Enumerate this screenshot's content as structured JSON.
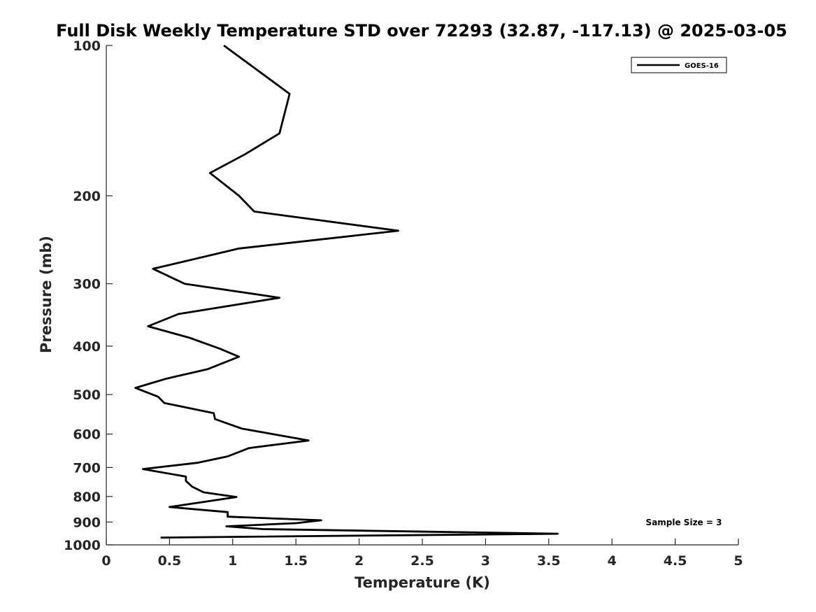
{
  "chart_data": {
    "type": "line",
    "title": "Full Disk Weekly Temperature STD over 72293 (32.87, -117.13) @ 2025-03-05",
    "xlabel": "Temperature (K)",
    "ylabel": "Pressure (mb)",
    "xlim": [
      0,
      5
    ],
    "ylim": [
      100,
      1000
    ],
    "y_scale": "log",
    "y_reversed": true,
    "x_ticks": [
      "0",
      "0.5",
      "1",
      "1.5",
      "2",
      "2.5",
      "3",
      "3.5",
      "4",
      "4.5",
      "5"
    ],
    "y_ticks": [
      "100",
      "200",
      "300",
      "400",
      "500",
      "600",
      "700",
      "800",
      "900",
      "1000"
    ],
    "grid": false,
    "legend": {
      "position": "top-right",
      "entries": [
        "GOES-16"
      ]
    },
    "annotation": "Sample Size = 3",
    "series": [
      {
        "name": "GOES-16",
        "color": "#000000",
        "points": [
          [
            0.93,
            100
          ],
          [
            1.45,
            125
          ],
          [
            1.37,
            150
          ],
          [
            1.1,
            165
          ],
          [
            0.82,
            180
          ],
          [
            1.05,
            200
          ],
          [
            1.17,
            215
          ],
          [
            2.31,
            235
          ],
          [
            1.05,
            255
          ],
          [
            0.37,
            280
          ],
          [
            0.62,
            300
          ],
          [
            1.37,
            320
          ],
          [
            0.57,
            345
          ],
          [
            0.33,
            365
          ],
          [
            0.66,
            385
          ],
          [
            0.9,
            405
          ],
          [
            1.05,
            420
          ],
          [
            0.8,
            445
          ],
          [
            0.47,
            465
          ],
          [
            0.23,
            485
          ],
          [
            0.41,
            505
          ],
          [
            0.46,
            520
          ],
          [
            0.85,
            545
          ],
          [
            0.86,
            560
          ],
          [
            1.07,
            585
          ],
          [
            1.6,
            618
          ],
          [
            1.13,
            640
          ],
          [
            0.96,
            665
          ],
          [
            0.72,
            685
          ],
          [
            0.29,
            705
          ],
          [
            0.63,
            730
          ],
          [
            0.63,
            745
          ],
          [
            0.68,
            765
          ],
          [
            0.77,
            785
          ],
          [
            1.03,
            802
          ],
          [
            0.71,
            825
          ],
          [
            0.5,
            840
          ],
          [
            0.96,
            860
          ],
          [
            0.96,
            878
          ],
          [
            1.7,
            893
          ],
          [
            1.5,
            905
          ],
          [
            0.95,
            918
          ],
          [
            1.24,
            930
          ],
          [
            3.57,
            950
          ],
          [
            0.43,
            967
          ]
        ]
      }
    ]
  }
}
